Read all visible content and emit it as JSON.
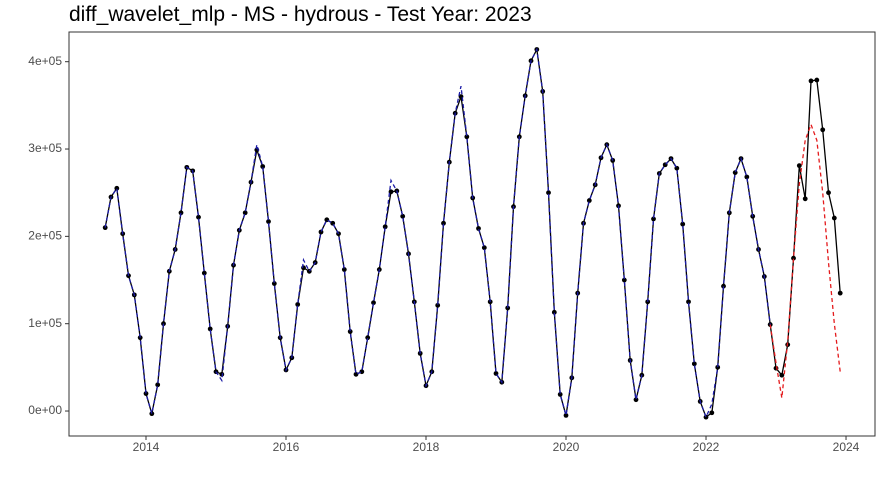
{
  "chart_data": {
    "type": "line",
    "title": "diff_wavelet_mlp - MS - hydrous - Test Year: 2023",
    "x": [
      2013.417,
      2013.5,
      2013.583,
      2013.667,
      2013.75,
      2013.833,
      2013.917,
      2014,
      2014.083,
      2014.167,
      2014.25,
      2014.333,
      2014.417,
      2014.5,
      2014.583,
      2014.667,
      2014.75,
      2014.833,
      2014.917,
      2015,
      2015.083,
      2015.167,
      2015.25,
      2015.333,
      2015.417,
      2015.5,
      2015.583,
      2015.667,
      2015.75,
      2015.833,
      2015.917,
      2016,
      2016.083,
      2016.167,
      2016.25,
      2016.333,
      2016.417,
      2016.5,
      2016.583,
      2016.667,
      2016.75,
      2016.833,
      2016.917,
      2017,
      2017.083,
      2017.167,
      2017.25,
      2017.333,
      2017.417,
      2017.5,
      2017.583,
      2017.667,
      2017.75,
      2017.833,
      2017.917,
      2018,
      2018.083,
      2018.167,
      2018.25,
      2018.333,
      2018.417,
      2018.5,
      2018.583,
      2018.667,
      2018.75,
      2018.833,
      2018.917,
      2019,
      2019.083,
      2019.167,
      2019.25,
      2019.333,
      2019.417,
      2019.5,
      2019.583,
      2019.667,
      2019.75,
      2019.833,
      2019.917,
      2020,
      2020.083,
      2020.167,
      2020.25,
      2020.333,
      2020.417,
      2020.5,
      2020.583,
      2020.667,
      2020.75,
      2020.833,
      2020.917,
      2021,
      2021.083,
      2021.167,
      2021.25,
      2021.333,
      2021.417,
      2021.5,
      2021.583,
      2021.667,
      2021.75,
      2021.833,
      2021.917,
      2022,
      2022.083,
      2022.167,
      2022.25,
      2022.333,
      2022.417,
      2022.5,
      2022.583,
      2022.667,
      2022.75,
      2022.833,
      2022.917,
      2023,
      2023.083,
      2023.167,
      2023.25,
      2023.333,
      2023.417,
      2023.5,
      2023.583,
      2023.667,
      2023.75,
      2023.833,
      2023.917
    ],
    "series": [
      {
        "color": "#000000",
        "dash": "solid",
        "markers": true,
        "values": [
          210000,
          245000,
          255000,
          203000,
          155000,
          133000,
          84000,
          20000,
          -3000,
          30000,
          100000,
          160000,
          185000,
          227000,
          279000,
          275000,
          222000,
          158000,
          94000,
          45000,
          42000,
          97000,
          167000,
          207000,
          227000,
          262000,
          299000,
          280000,
          217000,
          146000,
          84000,
          47000,
          61000,
          122000,
          164000,
          160000,
          170000,
          205000,
          219000,
          215000,
          203000,
          162000,
          91000,
          42000,
          45000,
          84000,
          124000,
          162000,
          211000,
          251000,
          252000,
          223000,
          180000,
          125000,
          66000,
          29000,
          45000,
          121000,
          215000,
          285000,
          341000,
          360000,
          314000,
          244000,
          209000,
          187000,
          125000,
          43000,
          33000,
          118000,
          234000,
          314000,
          361000,
          401000,
          414000,
          366000,
          250000,
          113000,
          19000,
          -5000,
          38000,
          135000,
          215000,
          241000,
          259000,
          290000,
          305000,
          287000,
          235000,
          150000,
          58000,
          13000,
          41000,
          125000,
          220000,
          272000,
          282000,
          289000,
          278000,
          214000,
          125000,
          54000,
          11000,
          -7000,
          -2000,
          50000,
          143000,
          227000,
          273000,
          289000,
          268000,
          223000,
          185000,
          154000,
          99000,
          49000,
          41000,
          76000,
          175000,
          281000,
          243000,
          378000,
          379000,
          322000,
          250000,
          221000,
          135000
        ]
      },
      {
        "color": "#1a1aa6",
        "dash": "dashed",
        "markers": false,
        "values": [
          210000,
          245000,
          255000,
          203000,
          155000,
          133000,
          84000,
          20000,
          -3000,
          30000,
          100000,
          160000,
          185000,
          227000,
          279000,
          275000,
          222000,
          158000,
          94000,
          45000,
          35000,
          97000,
          167000,
          207000,
          227000,
          262000,
          305000,
          280000,
          217000,
          146000,
          84000,
          47000,
          61000,
          122000,
          173000,
          160000,
          170000,
          205000,
          219000,
          215000,
          203000,
          162000,
          91000,
          42000,
          45000,
          84000,
          124000,
          162000,
          211000,
          264000,
          252000,
          223000,
          180000,
          125000,
          66000,
          29000,
          45000,
          121000,
          215000,
          285000,
          341000,
          372000,
          314000,
          244000,
          209000,
          187000,
          125000,
          43000,
          33000,
          118000,
          234000,
          314000,
          361000,
          401000,
          414000,
          366000,
          250000,
          113000,
          19000,
          -5000,
          38000,
          135000,
          215000,
          241000,
          259000,
          290000,
          305000,
          287000,
          235000,
          150000,
          58000,
          13000,
          41000,
          125000,
          220000,
          272000,
          282000,
          289000,
          278000,
          214000,
          125000,
          54000,
          11000,
          -7000,
          8000,
          50000,
          143000,
          227000,
          273000,
          289000,
          268000,
          223000,
          185000,
          154000,
          99000,
          null,
          null,
          null,
          null,
          null,
          null,
          null,
          null,
          null,
          null,
          null,
          null
        ]
      },
      {
        "color": "#e41a1c",
        "dash": "dashed",
        "markers": false,
        "values": [
          null,
          null,
          null,
          null,
          null,
          null,
          null,
          null,
          null,
          null,
          null,
          null,
          null,
          null,
          null,
          null,
          null,
          null,
          null,
          null,
          null,
          null,
          null,
          null,
          null,
          null,
          null,
          null,
          null,
          null,
          null,
          null,
          null,
          null,
          null,
          null,
          null,
          null,
          null,
          null,
          null,
          null,
          null,
          null,
          null,
          null,
          null,
          null,
          null,
          null,
          null,
          null,
          null,
          null,
          null,
          null,
          null,
          null,
          null,
          null,
          null,
          null,
          null,
          null,
          null,
          null,
          null,
          null,
          null,
          null,
          null,
          null,
          null,
          null,
          null,
          null,
          null,
          null,
          null,
          null,
          null,
          null,
          null,
          null,
          null,
          null,
          null,
          null,
          null,
          null,
          null,
          null,
          null,
          null,
          null,
          null,
          null,
          null,
          null,
          null,
          null,
          null,
          null,
          null,
          null,
          null,
          null,
          null,
          null,
          null,
          null,
          null,
          null,
          null,
          99000,
          55000,
          15000,
          80000,
          175000,
          260000,
          310000,
          328000,
          310000,
          250000,
          170000,
          100000,
          45000
        ]
      }
    ],
    "xlim": [
      2012.9,
      2024.414
    ],
    "xticks": [
      2014,
      2016,
      2018,
      2020,
      2022,
      2024
    ],
    "ylim": [
      -28600,
      434000
    ],
    "yticks": [
      {
        "value": 0,
        "label": "0e+00"
      },
      {
        "value": 100000,
        "label": "1e+05"
      },
      {
        "value": 200000,
        "label": "2e+05"
      },
      {
        "value": 300000,
        "label": "3e+05"
      },
      {
        "value": 400000,
        "label": "4e+05"
      }
    ],
    "grid": false
  }
}
